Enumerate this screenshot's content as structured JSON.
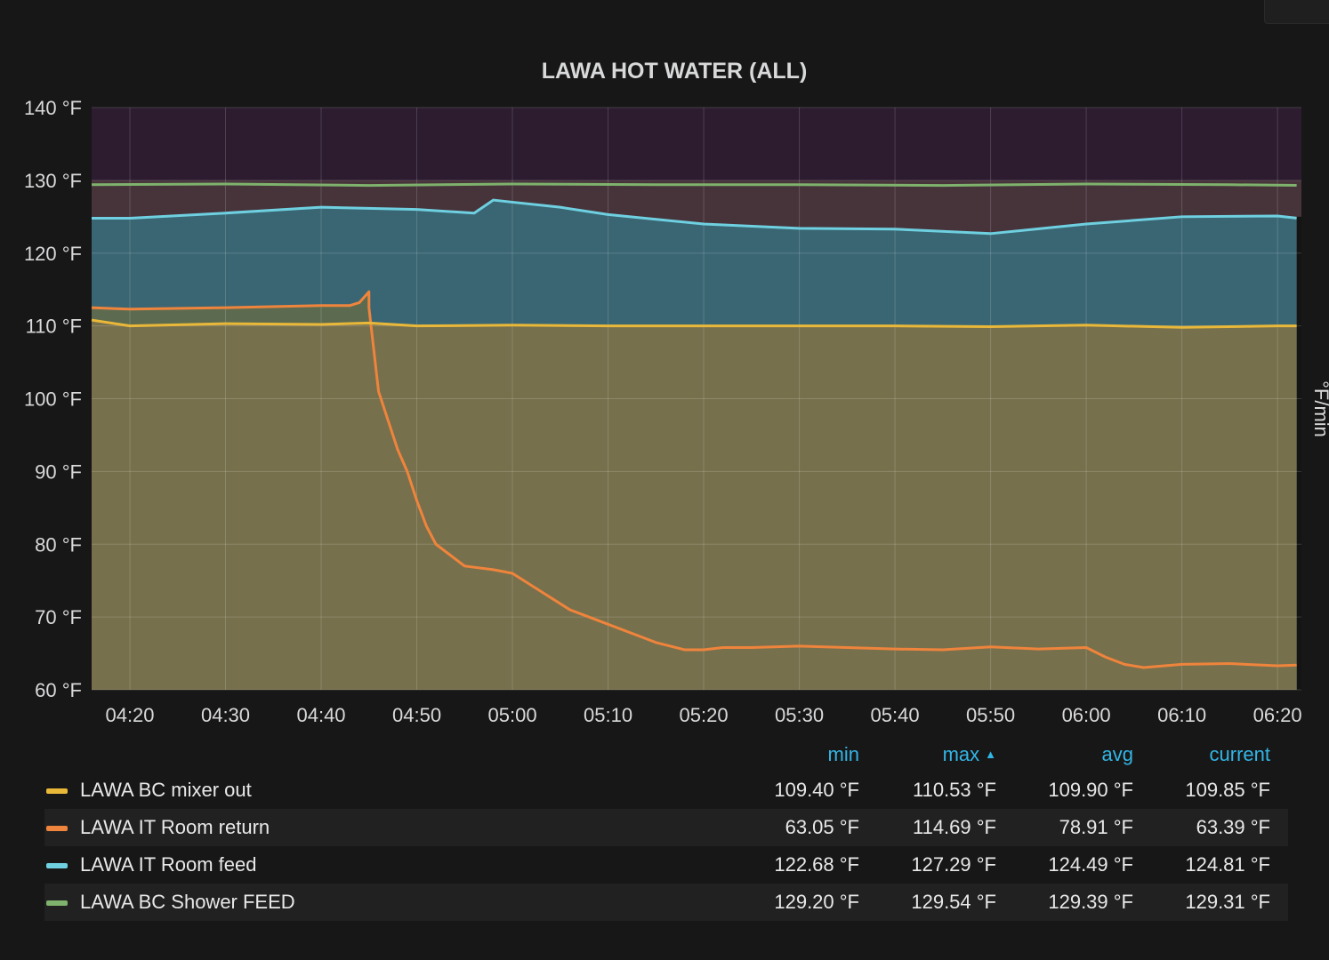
{
  "panel": {
    "title": "LAWA HOT WATER (ALL)"
  },
  "chart_data": {
    "type": "area",
    "title": "LAWA HOT WATER (ALL)",
    "y_axis": {
      "ylim": [
        60,
        140
      ],
      "ticks": [
        "140 °F",
        "130 °F",
        "120 °F",
        "110 °F",
        "100 °F",
        "90 °F",
        "80 °F",
        "70 °F",
        "60 °F"
      ],
      "tick_values": [
        140,
        130,
        120,
        110,
        100,
        90,
        80,
        70,
        60
      ]
    },
    "right_axis_label": "°F/min",
    "x_axis": {
      "tick_labels": [
        "04:20",
        "04:30",
        "04:40",
        "04:50",
        "05:00",
        "05:10",
        "05:20",
        "05:30",
        "05:40",
        "05:50",
        "06:00",
        "06:10",
        "06:20"
      ],
      "tick_minutes": [
        260,
        270,
        280,
        290,
        300,
        310,
        320,
        330,
        340,
        350,
        360,
        370,
        380
      ],
      "xlim_minutes": [
        256,
        382.5
      ]
    },
    "thresholds": [
      {
        "from": 125,
        "to": 130,
        "color": "#47343b"
      },
      {
        "from": 130,
        "to": 140,
        "color": "#2d1b30"
      }
    ],
    "grid": true,
    "series": [
      {
        "name": "LAWA BC mixer out",
        "color": "#eab839",
        "fill": "#77704c",
        "x": [
          "04:16",
          "04:20",
          "04:30",
          "04:40",
          "04:45",
          "04:50",
          "05:00",
          "05:10",
          "05:20",
          "05:30",
          "05:40",
          "05:50",
          "06:00",
          "06:10",
          "06:20",
          "06:22"
        ],
        "y": [
          110.8,
          110.0,
          110.3,
          110.2,
          110.4,
          110.0,
          110.1,
          110.0,
          110.0,
          110.0,
          110.0,
          109.9,
          110.1,
          109.8,
          110.0,
          110.0
        ]
      },
      {
        "name": "LAWA IT Room return",
        "color": "#ef843c",
        "fill": "#5c6b50",
        "x": [
          "04:16",
          "04:20",
          "04:30",
          "04:40",
          "04:43",
          "04:44",
          "04:45",
          "04:45",
          "04:46",
          "04:47",
          "04:48",
          "04:49",
          "04:50",
          "04:51",
          "04:52",
          "04:55",
          "04:58",
          "05:00",
          "05:03",
          "05:06",
          "05:10",
          "05:15",
          "05:18",
          "05:20",
          "05:22",
          "05:25",
          "05:30",
          "05:40",
          "05:45",
          "05:50",
          "05:55",
          "06:00",
          "06:02",
          "06:04",
          "06:06",
          "06:10",
          "06:15",
          "06:20",
          "06:22"
        ],
        "y": [
          112.5,
          112.3,
          112.5,
          112.8,
          112.8,
          113.2,
          114.69,
          112.5,
          101.0,
          97.0,
          93.0,
          90.0,
          86.0,
          82.5,
          80.0,
          77.0,
          76.5,
          76.0,
          73.5,
          71.0,
          69.0,
          66.5,
          65.5,
          65.5,
          65.8,
          65.8,
          66.0,
          65.6,
          65.5,
          65.9,
          65.6,
          65.8,
          64.5,
          63.5,
          63.05,
          63.5,
          63.6,
          63.3,
          63.39
        ]
      },
      {
        "name": "LAWA IT Room feed",
        "color": "#6ed0e0",
        "fill": "#3a6673",
        "x": [
          "04:16",
          "04:20",
          "04:30",
          "04:40",
          "04:50",
          "04:56",
          "04:58",
          "05:00",
          "05:05",
          "05:10",
          "05:20",
          "05:30",
          "05:40",
          "05:50",
          "06:00",
          "06:10",
          "06:20",
          "06:22"
        ],
        "y": [
          124.8,
          124.8,
          125.5,
          126.3,
          126.0,
          125.5,
          127.29,
          127.0,
          126.3,
          125.3,
          124.0,
          123.4,
          123.3,
          122.68,
          124.0,
          125.0,
          125.1,
          124.81
        ]
      },
      {
        "name": "LAWA BC Shower FEED",
        "color": "#7eb26d",
        "fill": "#47343b",
        "x": [
          "04:16",
          "04:30",
          "04:45",
          "05:00",
          "05:15",
          "05:30",
          "05:45",
          "06:00",
          "06:15",
          "06:22"
        ],
        "y": [
          129.4,
          129.5,
          129.3,
          129.5,
          129.4,
          129.4,
          129.3,
          129.5,
          129.4,
          129.31
        ]
      }
    ]
  },
  "legend": {
    "headers": {
      "min": "min",
      "max": "max",
      "avg": "avg",
      "current": "current"
    },
    "rows": [
      {
        "name": "LAWA BC mixer out",
        "color": "#eab839",
        "min": "109.40 °F",
        "max": "110.53 °F",
        "avg": "109.90 °F",
        "current": "109.85 °F"
      },
      {
        "name": "LAWA IT Room return",
        "color": "#ef843c",
        "min": "63.05 °F",
        "max": "114.69 °F",
        "avg": "78.91 °F",
        "current": "63.39 °F"
      },
      {
        "name": "LAWA IT Room feed",
        "color": "#6ed0e0",
        "min": "122.68 °F",
        "max": "127.29 °F",
        "avg": "124.49 °F",
        "current": "124.81 °F"
      },
      {
        "name": "LAWA BC Shower FEED",
        "color": "#7eb26d",
        "min": "129.20 °F",
        "max": "129.54 °F",
        "avg": "129.39 °F",
        "current": "129.31 °F"
      }
    ]
  }
}
